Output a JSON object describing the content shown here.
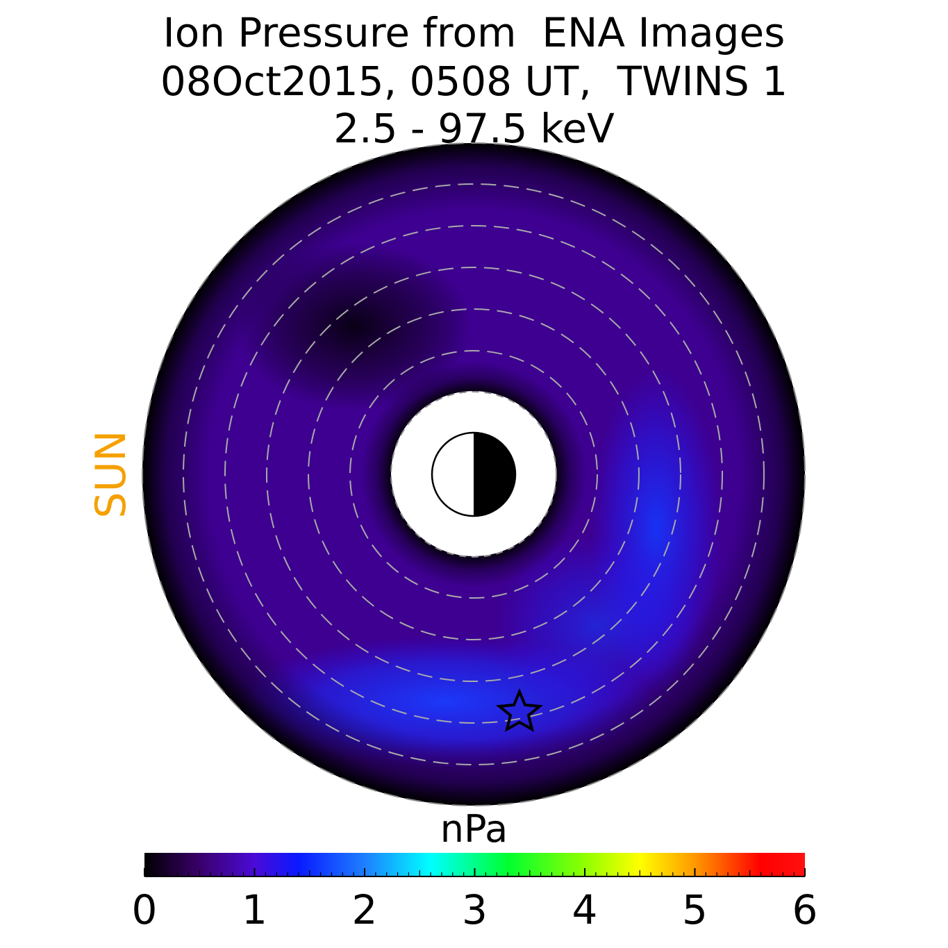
{
  "title": {
    "line1": "Ion Pressure from  ENA Images",
    "line2": "08Oct2015, 0508 UT,  TWINS 1",
    "line3": "2.5 - 97.5 keV"
  },
  "sun_label": "SUN",
  "colors": {
    "sun_label": "#f5a000",
    "ring_dashes": "#aaaaaa",
    "background": "#ffffff"
  },
  "chart_data": {
    "type": "heatmap",
    "projection": "polar equatorial plane",
    "colorbar": {
      "unit": "nPa",
      "min": 0,
      "max": 6,
      "ticks": [
        "0",
        "1",
        "2",
        "3",
        "4",
        "5",
        "6"
      ],
      "colormap": [
        {
          "value": 0.0,
          "color": "#000000"
        },
        {
          "value": 0.5,
          "color": "#3a006a"
        },
        {
          "value": 1.0,
          "color": "#4a0bd6"
        },
        {
          "value": 1.4,
          "color": "#0a1aff"
        },
        {
          "value": 2.0,
          "color": "#1e7fff"
        },
        {
          "value": 2.6,
          "color": "#00ffff"
        },
        {
          "value": 3.3,
          "color": "#00ff30"
        },
        {
          "value": 4.0,
          "color": "#90ff00"
        },
        {
          "value": 4.5,
          "color": "#ffff00"
        },
        {
          "value": 5.0,
          "color": "#ff9900"
        },
        {
          "value": 5.6,
          "color": "#ff0000"
        },
        {
          "value": 6.0,
          "color": "#ff1010"
        }
      ]
    },
    "features": {
      "pressure_range_nPa": [
        0,
        1.5
      ],
      "peak_pressure_nPa": 1.5,
      "peak_sector": "dusk / lower-right",
      "minimum_sector": "dawn / upper-left"
    },
    "markers": [
      "star",
      "earth"
    ]
  }
}
